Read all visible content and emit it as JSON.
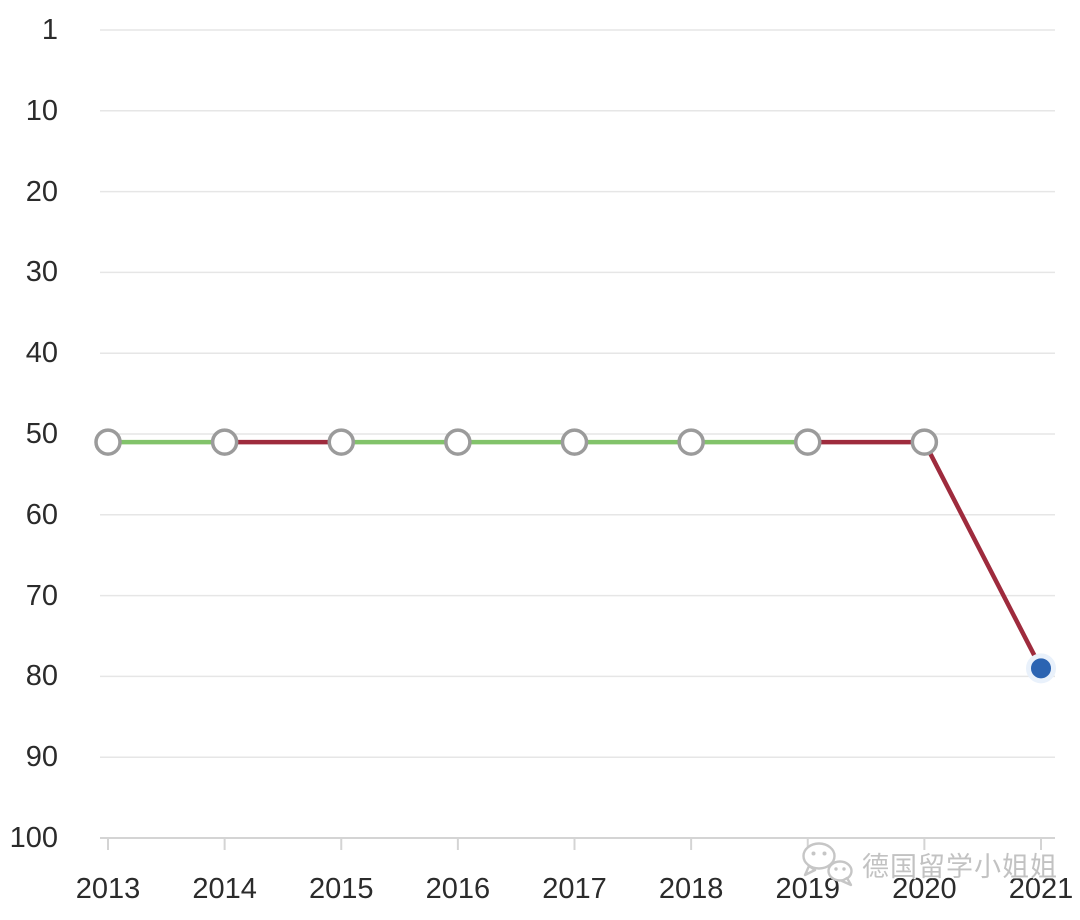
{
  "watermark": {
    "text": "德国留学小姐姐",
    "icon": "wechat-logo",
    "color": "#c6c6c6"
  },
  "chart_data": {
    "type": "line",
    "title": "",
    "x_categories": [
      "2013",
      "2014",
      "2015",
      "2016",
      "2017",
      "2018",
      "2019",
      "2020",
      "2021"
    ],
    "series": [
      {
        "values": [
          51,
          51,
          51,
          51,
          51,
          51,
          51,
          51,
          79
        ]
      }
    ],
    "y_ticks": [
      1,
      10,
      20,
      30,
      40,
      50,
      60,
      70,
      80,
      90,
      100
    ],
    "y_axis_inverted": true,
    "grid_on": true,
    "legend": "none",
    "segment_colors": [
      "#82c36a",
      "#9e2b3d",
      "#82c36a",
      "#82c36a",
      "#82c36a",
      "#82c36a",
      "#9e2b3d",
      "#9e2b3d"
    ],
    "colors": {
      "up_green": "#82c36a",
      "down_red": "#9e2b3d",
      "last_point_blue": "#2b64b2",
      "last_point_halo": "#e9f1fb",
      "marker_ring": "#9b9b9b",
      "marker_fill": "#ffffff",
      "gridline": "#e6e6e6",
      "axis_line": "#d4d4d4",
      "tick_label": "#2b2b2b"
    }
  }
}
